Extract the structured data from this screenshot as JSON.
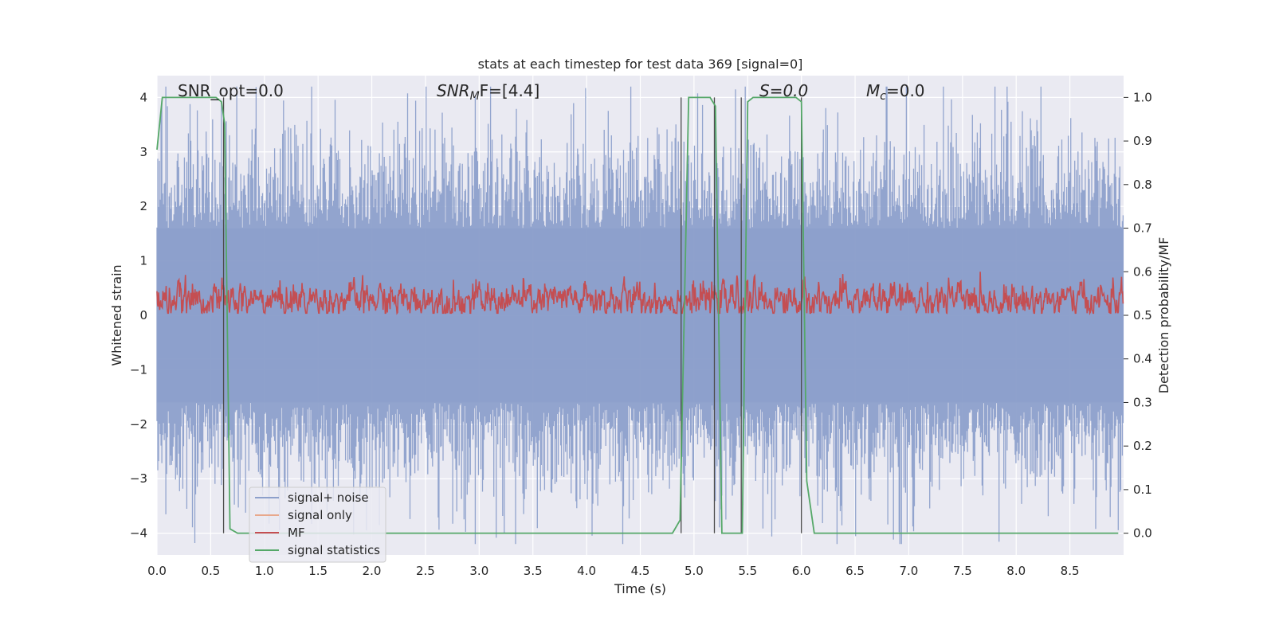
{
  "chart_data": {
    "type": "line",
    "title": "stats at each timestep for test data 369 [signal=0]",
    "xlabel": "Time (s)",
    "ylabel": "Whitened strain",
    "y2label": "Detection probability/MF",
    "xlim": [
      0.0,
      9.0
    ],
    "ylim": [
      -4.4,
      4.4
    ],
    "y2lim": [
      -0.05,
      1.05
    ],
    "x_ticks": [
      "0.0",
      "0.5",
      "1.0",
      "1.5",
      "2.0",
      "2.5",
      "3.0",
      "3.5",
      "4.0",
      "4.5",
      "5.0",
      "5.5",
      "6.0",
      "6.5",
      "7.0",
      "7.5",
      "8.0",
      "8.5"
    ],
    "y_ticks": [
      "4",
      "3",
      "2",
      "1",
      "0",
      "−1",
      "−2",
      "−3",
      "−4"
    ],
    "y2_ticks": [
      "1.0",
      "0.9",
      "0.8",
      "0.7",
      "0.6",
      "0.5",
      "0.4",
      "0.3",
      "0.2",
      "0.1",
      "0.0"
    ],
    "grid": true,
    "legend_position": "lower-left",
    "annotations": {
      "snr_opt": "SNR_opt=0.0",
      "snr_mf_base": "SNR",
      "snr_mf_sub": "M",
      "snr_mf_rest": "F=[4.4]",
      "s_value": "S=0.0",
      "mc_base": "M",
      "mc_sub": "c",
      "mc_rest": "=0.0"
    },
    "series": [
      {
        "name": "signal+ noise",
        "color": "#8da0cb",
        "description_of_values": "whitened noisy strain around 0, amplitude roughly ±4"
      },
      {
        "name": "signal only",
        "color": "#e8a88c",
        "values": []
      },
      {
        "name": "MF",
        "color": "#c44e52"
      },
      {
        "name": "signal statistics",
        "color": "#55a868",
        "x": [
          0.0,
          0.05,
          0.1,
          0.55,
          0.6,
          0.63,
          0.68,
          0.75,
          4.8,
          4.87,
          4.95,
          5.15,
          5.2,
          5.26,
          5.45,
          5.5,
          5.55,
          5.95,
          6.0,
          6.05,
          6.12,
          8.95
        ],
        "values": [
          0.88,
          1.0,
          1.0,
          1.0,
          0.99,
          0.94,
          0.01,
          0.0,
          0.0,
          0.03,
          1.0,
          1.0,
          0.98,
          0.0,
          0.0,
          0.99,
          1.0,
          1.0,
          0.99,
          0.12,
          0.0,
          0.0
        ]
      }
    ],
    "vertical_markers_x": [
      0.62,
      4.88,
      5.19,
      5.44,
      6.0
    ],
    "horizontal_guides_y2": [
      0.6,
      0.4,
      0.3,
      0.7
    ],
    "colors": {
      "background": "#eaeaf2",
      "grid": "#ffffff",
      "marker": "#4c4c4c"
    }
  }
}
